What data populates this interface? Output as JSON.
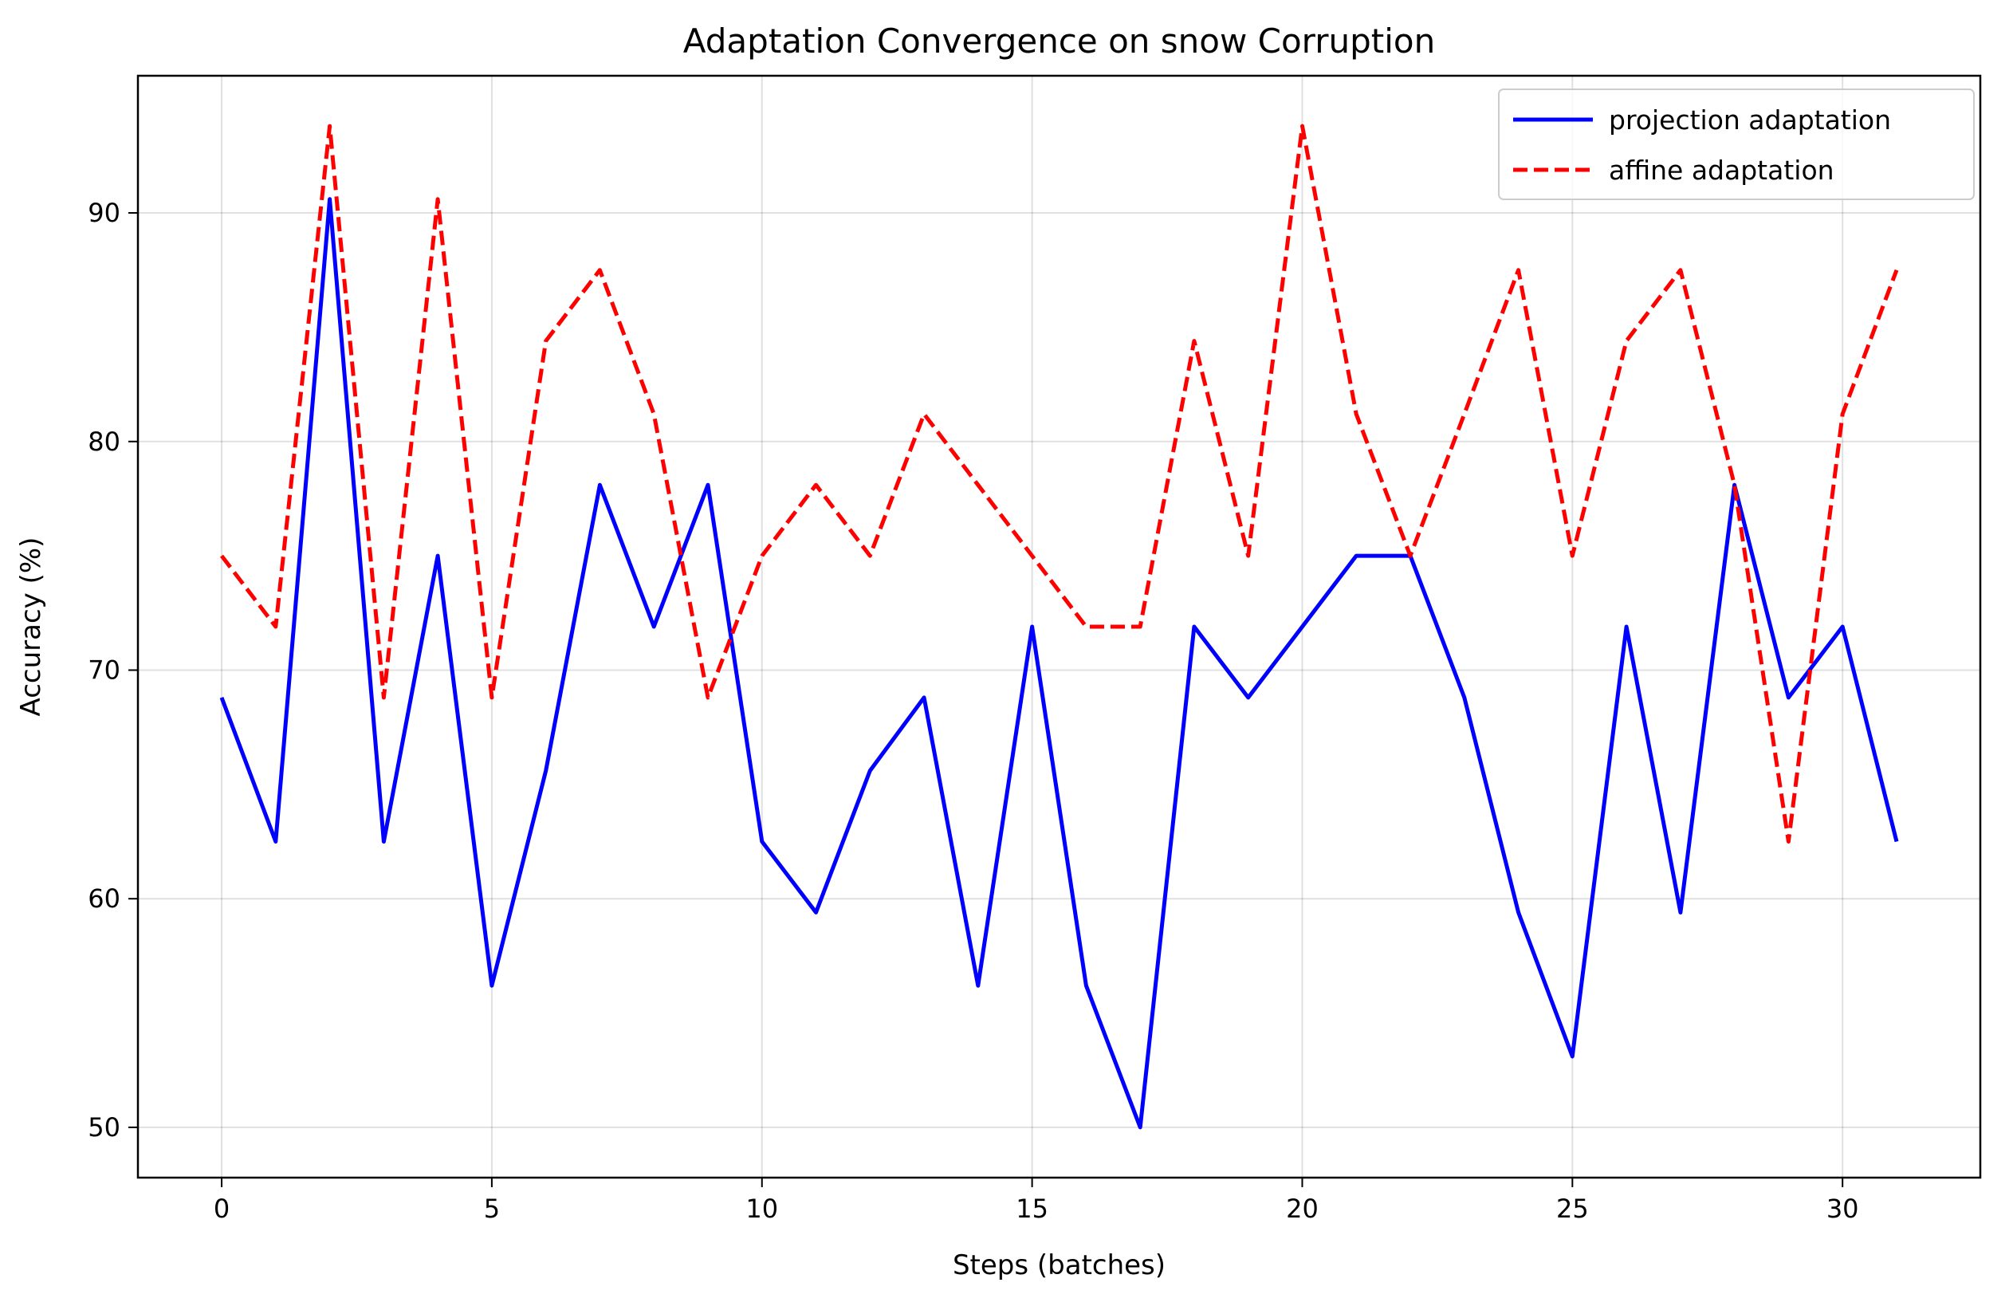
{
  "chart_data": {
    "type": "line",
    "title": "Adaptation Convergence on snow Corruption",
    "xlabel": "Steps (batches)",
    "ylabel": "Accuracy (%)",
    "xlim": [
      -1.55,
      32.55
    ],
    "ylim": [
      47.8,
      96.0
    ],
    "x_ticks": [
      0,
      5,
      10,
      15,
      20,
      25,
      30
    ],
    "y_ticks": [
      50,
      60,
      70,
      80,
      90
    ],
    "grid": true,
    "legend_position": "top-right",
    "x": [
      0,
      1,
      2,
      3,
      4,
      5,
      6,
      7,
      8,
      9,
      10,
      11,
      12,
      13,
      14,
      15,
      16,
      17,
      18,
      19,
      20,
      21,
      22,
      23,
      24,
      25,
      26,
      27,
      28,
      29,
      30,
      31
    ],
    "series": [
      {
        "name": "projection adaptation",
        "color": "#0000ff",
        "style": "solid",
        "values": [
          68.8,
          62.5,
          90.6,
          62.5,
          75.0,
          56.2,
          65.6,
          78.1,
          71.9,
          78.1,
          62.5,
          59.4,
          65.6,
          68.8,
          56.2,
          71.9,
          56.2,
          50.0,
          71.9,
          68.8,
          71.9,
          75.0,
          75.0,
          68.8,
          59.4,
          53.1,
          71.9,
          59.4,
          78.1,
          68.8,
          71.9,
          62.5
        ]
      },
      {
        "name": "affine adaptation",
        "color": "#ff0000",
        "style": "dashed",
        "values": [
          75.0,
          71.9,
          93.8,
          68.8,
          90.6,
          68.8,
          84.4,
          87.5,
          81.2,
          68.8,
          75.0,
          78.1,
          75.0,
          81.2,
          78.1,
          75.0,
          71.9,
          71.9,
          84.4,
          75.0,
          93.8,
          81.2,
          75.0,
          81.2,
          87.5,
          75.0,
          84.4,
          87.5,
          78.1,
          62.5,
          81.2,
          87.5
        ]
      }
    ]
  }
}
